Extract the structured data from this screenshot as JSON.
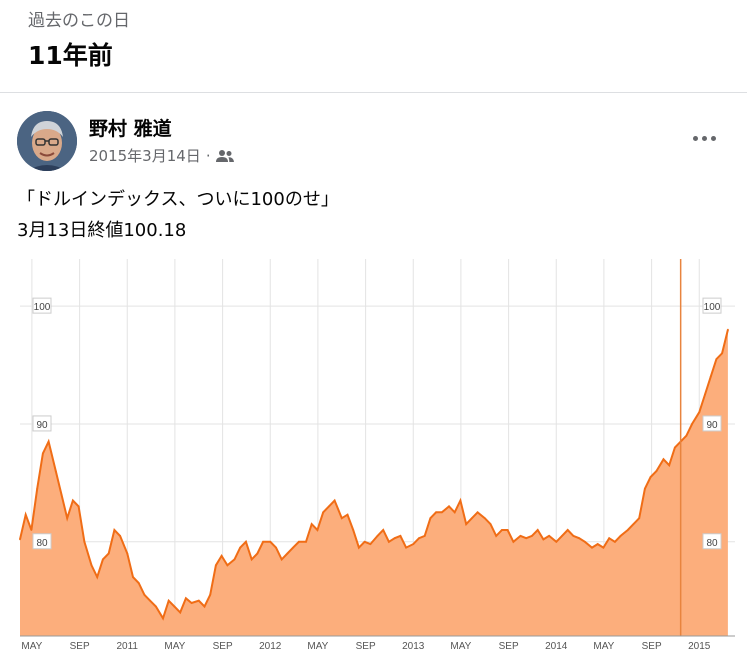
{
  "header": {
    "memories_label": "過去のこの日",
    "years_ago": "11年前"
  },
  "post": {
    "author": "野村 雅道",
    "date": "2015年3月14日",
    "separator": "·",
    "audience_icon": "friends-icon",
    "more_icon": "more-horizontal-icon",
    "text_line1": "「ドルインデックス、ついに100のせ」",
    "text_line2": "3月13日終値100.18"
  },
  "colors": {
    "area_fill": "#fcae7c",
    "line": "#f06d16",
    "grid": "#e3e3e3",
    "marker": "#e8843e"
  },
  "chart_data": {
    "type": "area",
    "title": "",
    "xlabel": "",
    "ylabel": "",
    "grid": true,
    "x_ticks": [
      "MAY",
      "SEP",
      "2011",
      "MAY",
      "SEP",
      "2012",
      "MAY",
      "SEP",
      "2013",
      "MAY",
      "SEP",
      "2014",
      "MAY",
      "SEP",
      "2015"
    ],
    "y_ticks": [
      80,
      90,
      100
    ],
    "x_range": [
      2010.25,
      2015.25
    ],
    "ylim": [
      72,
      104
    ],
    "marker_x": 2014.87,
    "series": [
      {
        "x": [
          2010.25,
          2010.29,
          2010.33,
          2010.37,
          2010.41,
          2010.45,
          2010.5,
          2010.54,
          2010.58,
          2010.62,
          2010.66,
          2010.7,
          2010.75,
          2010.79,
          2010.83,
          2010.87,
          2010.91,
          2010.95,
          2011.0,
          2011.04,
          2011.08,
          2011.12,
          2011.16,
          2011.2,
          2011.25,
          2011.29,
          2011.33,
          2011.37,
          2011.41,
          2011.45,
          2011.5,
          2011.54,
          2011.58,
          2011.62,
          2011.66,
          2011.7,
          2011.75,
          2011.79,
          2011.83,
          2011.87,
          2011.91,
          2011.95,
          2012.0,
          2012.04,
          2012.08,
          2012.12,
          2012.16,
          2012.2,
          2012.25,
          2012.29,
          2012.33,
          2012.37,
          2012.41,
          2012.45,
          2012.5,
          2012.54,
          2012.58,
          2012.62,
          2012.66,
          2012.7,
          2012.75,
          2012.79,
          2012.83,
          2012.87,
          2012.91,
          2012.95,
          2013.0,
          2013.04,
          2013.08,
          2013.12,
          2013.16,
          2013.2,
          2013.25,
          2013.29,
          2013.33,
          2013.37,
          2013.41,
          2013.45,
          2013.5,
          2013.54,
          2013.58,
          2013.62,
          2013.66,
          2013.7,
          2013.75,
          2013.79,
          2013.83,
          2013.87,
          2013.91,
          2013.95,
          2014.0,
          2014.04,
          2014.08,
          2014.12,
          2014.16,
          2014.2,
          2014.25,
          2014.29,
          2014.33,
          2014.37,
          2014.41,
          2014.45,
          2014.5,
          2014.54,
          2014.58,
          2014.62,
          2014.66,
          2014.7,
          2014.75,
          2014.79,
          2014.83,
          2014.87,
          2014.91,
          2014.95,
          2015.0,
          2015.04,
          2015.08,
          2015.12,
          2015.16,
          2015.2
        ],
        "values": [
          80.2,
          82.3,
          81.0,
          84.5,
          87.5,
          88.5,
          86.0,
          84.0,
          82.0,
          83.5,
          83.0,
          80.0,
          78.0,
          77.0,
          78.5,
          79.0,
          81.0,
          80.5,
          79.0,
          77.0,
          76.5,
          75.5,
          75.0,
          74.5,
          73.5,
          75.0,
          74.5,
          74.0,
          75.2,
          74.8,
          75.0,
          74.5,
          75.5,
          78.0,
          78.8,
          78.0,
          78.5,
          79.5,
          80.0,
          78.5,
          79.0,
          80.0,
          80.0,
          79.5,
          78.5,
          79.0,
          79.5,
          80.0,
          80.0,
          81.5,
          81.0,
          82.5,
          83.0,
          83.5,
          82.0,
          82.3,
          81.0,
          79.5,
          80.0,
          79.8,
          80.5,
          81.0,
          80.0,
          80.3,
          80.5,
          79.5,
          79.8,
          80.3,
          80.5,
          82.0,
          82.5,
          82.5,
          83.0,
          82.5,
          83.5,
          81.5,
          82.0,
          82.5,
          82.0,
          81.5,
          80.5,
          81.0,
          81.0,
          80.0,
          80.5,
          80.3,
          80.5,
          81.0,
          80.2,
          80.5,
          80.0,
          80.5,
          81.0,
          80.5,
          80.3,
          80.0,
          79.5,
          79.8,
          79.5,
          80.3,
          80.0,
          80.5,
          81.0,
          81.5,
          82.0,
          84.5,
          85.5,
          86.0,
          87.0,
          86.5,
          88.0,
          88.5,
          89.0,
          90.0,
          91.0,
          92.5,
          94.0,
          95.5,
          96.0,
          98.0
        ]
      }
    ]
  }
}
